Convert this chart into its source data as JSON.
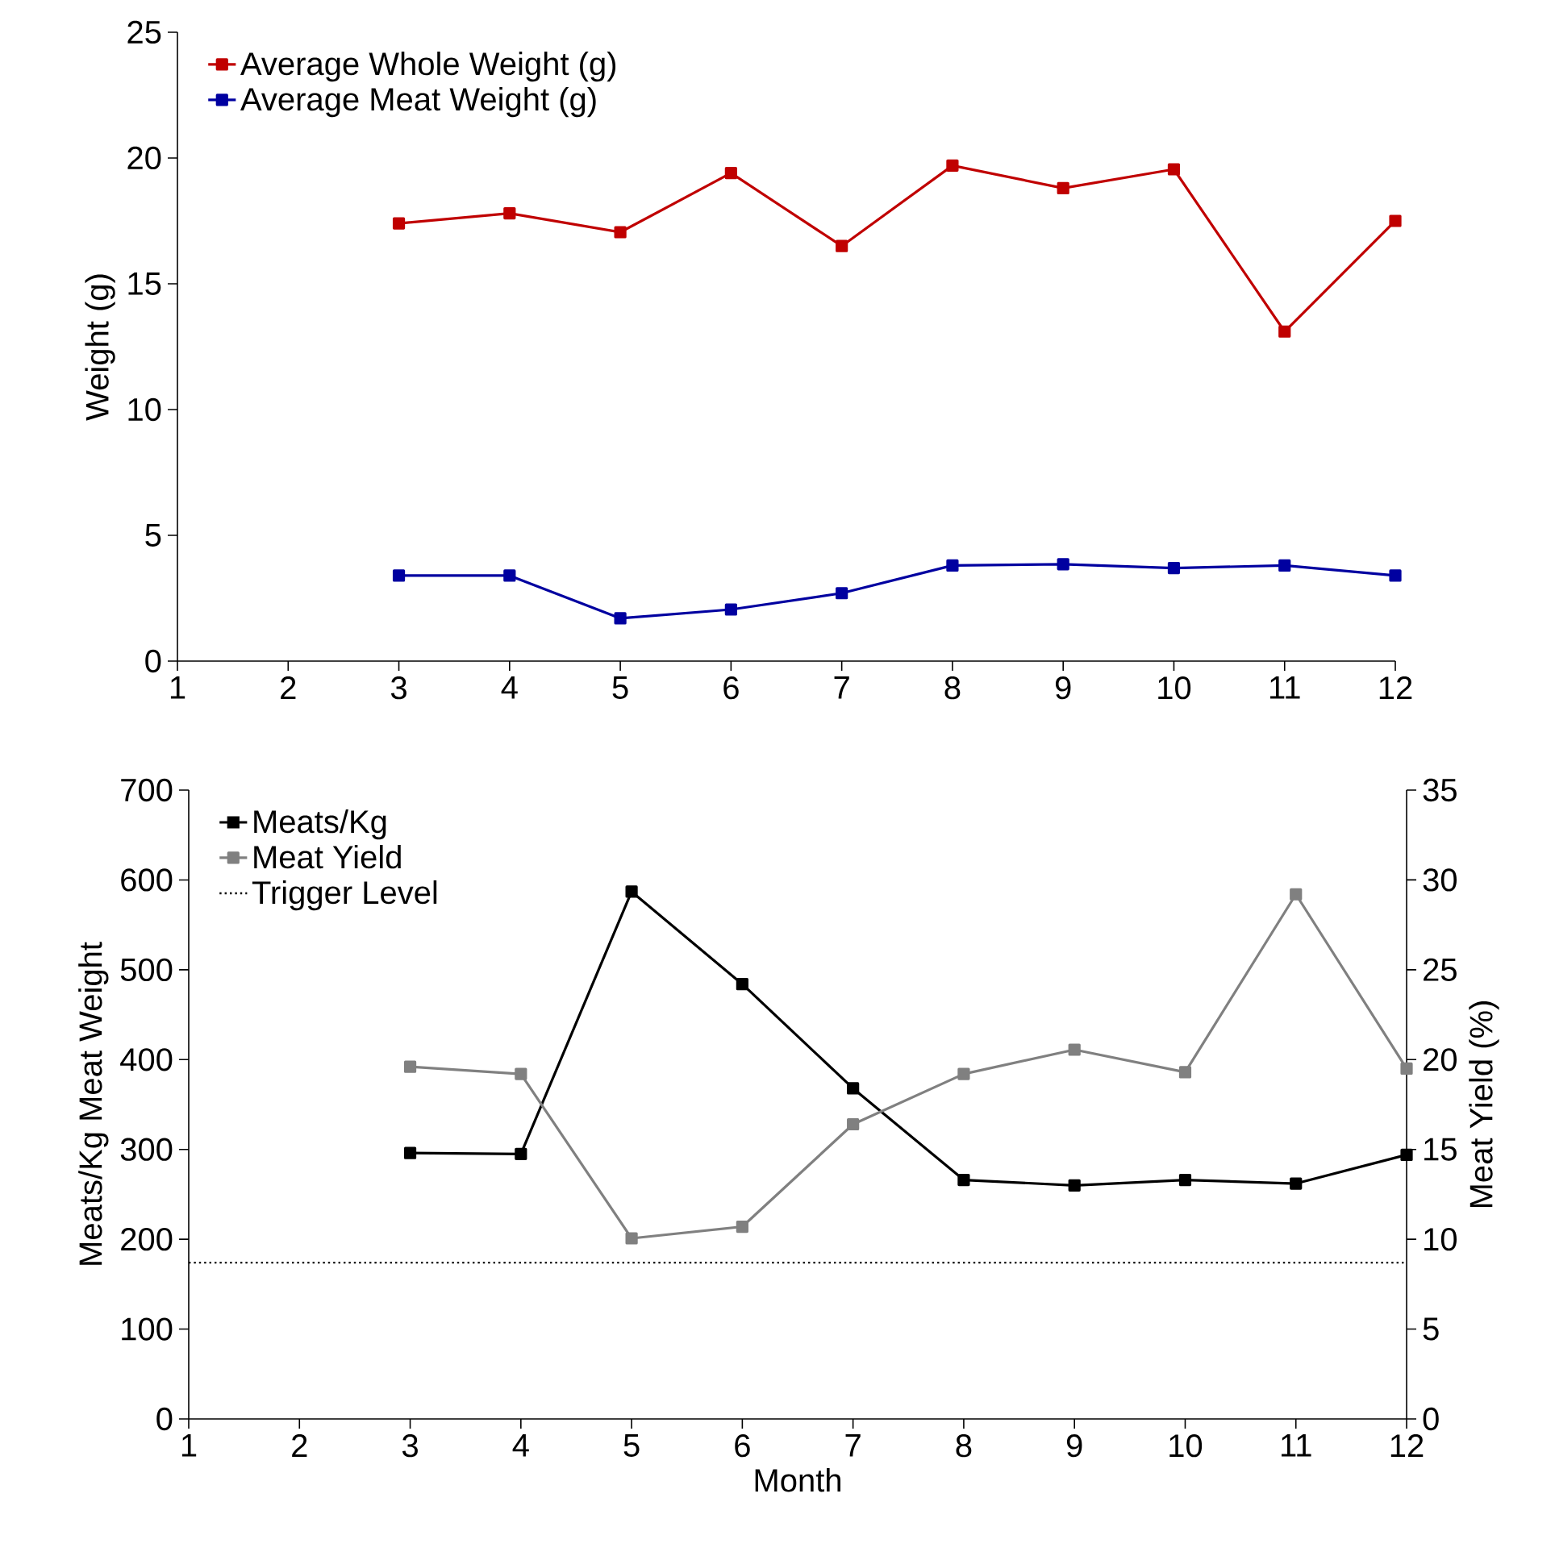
{
  "chart_data": [
    {
      "type": "line",
      "ylabel": "Weight (g)",
      "x": [
        3,
        4,
        5,
        6,
        7,
        8,
        9,
        10,
        11,
        12
      ],
      "series": [
        {
          "name": "Average Whole Weight (g)",
          "color": "#c00000",
          "values": [
            17.4,
            17.8,
            17.05,
            19.4,
            16.5,
            19.7,
            18.8,
            19.55,
            13.1,
            17.5
          ]
        },
        {
          "name": "Average Meat Weight (g)",
          "color": "#0000a0",
          "values": [
            3.4,
            3.4,
            1.7,
            2.05,
            2.7,
            3.8,
            3.85,
            3.7,
            3.8,
            3.4
          ]
        }
      ],
      "xlim": [
        1,
        12
      ],
      "xticks": [
        1,
        2,
        3,
        4,
        5,
        6,
        7,
        8,
        9,
        10,
        11,
        12
      ],
      "ylim": [
        0,
        25
      ],
      "yticks": [
        0,
        5,
        10,
        15,
        20,
        25
      ],
      "grid": false,
      "legend": "top left",
      "marker": "square",
      "line_style": "solid"
    },
    {
      "type": "line",
      "xlabel": "Month",
      "ylabel": "Meats/Kg Meat Weight",
      "y2label": "Meat Yield (%)",
      "x": [
        3,
        4,
        5,
        6,
        7,
        8,
        9,
        10,
        11,
        12
      ],
      "series": [
        {
          "name": "Meats/Kg",
          "color": "#000000",
          "values": [
            296,
            295,
            587,
            484,
            368,
            266,
            260,
            266,
            262,
            294
          ]
        },
        {
          "name": "Meat Yield",
          "color": "#808080",
          "axis": "y2",
          "values": [
            19.6,
            19.2,
            10.05,
            10.7,
            16.4,
            19.2,
            20.55,
            19.3,
            29.2,
            19.5
          ]
        }
      ],
      "ref_lines": [
        {
          "axis": "y",
          "value": 174,
          "label": "Trigger Level",
          "line_style": "dotted",
          "color": "#000000"
        }
      ],
      "xlim": [
        1,
        12
      ],
      "xticks": [
        1,
        2,
        3,
        4,
        5,
        6,
        7,
        8,
        9,
        10,
        11,
        12
      ],
      "ylim": [
        0,
        700
      ],
      "yticks": [
        0,
        100,
        200,
        300,
        400,
        500,
        600,
        700
      ],
      "y2lim": [
        0,
        35
      ],
      "y2ticks": [
        0,
        5,
        10,
        15,
        20,
        25,
        30,
        35
      ],
      "grid": false,
      "legend": "top left",
      "marker": "square",
      "line_style": "solid"
    }
  ]
}
